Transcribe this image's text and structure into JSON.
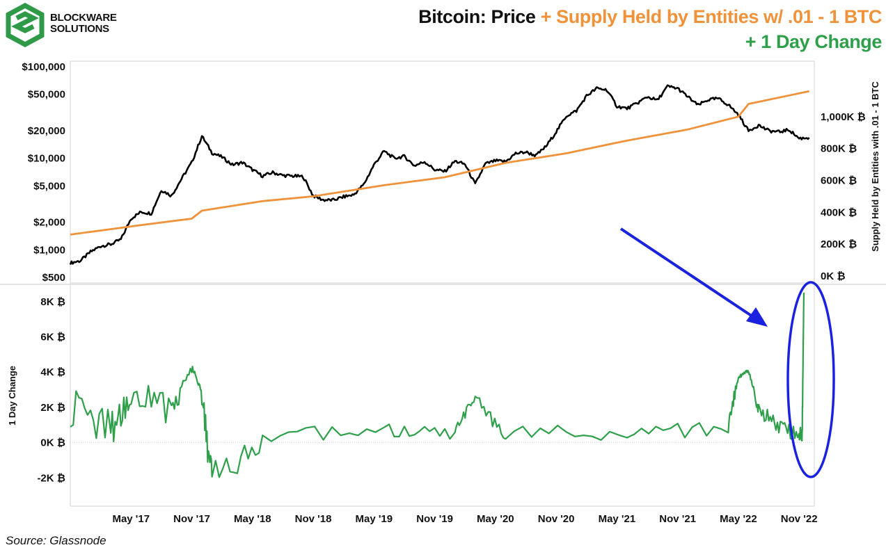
{
  "header": {
    "brand_line1": "BLOCKWARE",
    "brand_line2": "SOLUTIONS",
    "title_price": "Bitcoin: Price",
    "title_supply": "+ Supply Held by Entities w/ .01 - 1 BTC",
    "title_change": "+ 1 Day Change"
  },
  "footer": {
    "source": "Source: Glassnode"
  },
  "colors": {
    "price": "#000000",
    "supply": "#f0923a",
    "change": "#2ea04a",
    "arrow": "#1a22e0",
    "ellipse": "#1a22e0",
    "logo": "#2e9a48"
  },
  "chart_data": [
    {
      "type": "line",
      "panel": "top",
      "xlabel": "",
      "ylabel": "",
      "y2label": "Supply Held by Entities with .01 - 1 BTC",
      "yscale": "log",
      "ylim": [
        500,
        100000
      ],
      "y2lim": [
        0,
        1200000
      ],
      "y_ticks": [
        {
          "value": 100000,
          "label": "$100,000"
        },
        {
          "value": 50000,
          "label": "$50,000"
        },
        {
          "value": 20000,
          "label": "$20,000"
        },
        {
          "value": 10000,
          "label": "$10,000"
        },
        {
          "value": 5000,
          "label": "$5,000"
        },
        {
          "value": 2000,
          "label": "$2,000"
        },
        {
          "value": 1000,
          "label": "$1,000"
        },
        {
          "value": 500,
          "label": "$500"
        }
      ],
      "y2_ticks": [
        {
          "value": 1000000,
          "label": "1,000K ₿"
        },
        {
          "value": 800000,
          "label": "800K ₿"
        },
        {
          "value": 600000,
          "label": "600K ₿"
        },
        {
          "value": 400000,
          "label": "400K ₿"
        },
        {
          "value": 200000,
          "label": "200K ₿"
        },
        {
          "value": 0,
          "label": "0K ₿"
        }
      ],
      "series": [
        {
          "key": "price",
          "axis": "left",
          "x": [
            "2016-11",
            "2016-12",
            "2017-01",
            "2017-02",
            "2017-03",
            "2017-04",
            "2017-05",
            "2017-06",
            "2017-07",
            "2017-08",
            "2017-09",
            "2017-10",
            "2017-11",
            "2017-12",
            "2018-01",
            "2018-02",
            "2018-03",
            "2018-04",
            "2018-05",
            "2018-06",
            "2018-07",
            "2018-08",
            "2018-09",
            "2018-10",
            "2018-11",
            "2018-12",
            "2019-01",
            "2019-02",
            "2019-03",
            "2019-04",
            "2019-05",
            "2019-06",
            "2019-07",
            "2019-08",
            "2019-09",
            "2019-10",
            "2019-11",
            "2019-12",
            "2020-01",
            "2020-02",
            "2020-03",
            "2020-04",
            "2020-05",
            "2020-06",
            "2020-07",
            "2020-08",
            "2020-09",
            "2020-10",
            "2020-11",
            "2020-12",
            "2021-01",
            "2021-02",
            "2021-03",
            "2021-04",
            "2021-05",
            "2021-06",
            "2021-07",
            "2021-08",
            "2021-09",
            "2021-10",
            "2021-11",
            "2021-12",
            "2022-01",
            "2022-02",
            "2022-03",
            "2022-04",
            "2022-05",
            "2022-06",
            "2022-07",
            "2022-08",
            "2022-09",
            "2022-10",
            "2022-11",
            "2022-12"
          ],
          "values": [
            720,
            760,
            950,
            1100,
            1150,
            1300,
            2200,
            2600,
            2500,
            4500,
            3900,
            6000,
            9000,
            17500,
            11500,
            10300,
            8500,
            9000,
            7500,
            6400,
            7000,
            6500,
            6400,
            6300,
            3900,
            3500,
            3500,
            3800,
            4000,
            5200,
            8500,
            12000,
            10000,
            10500,
            8300,
            9200,
            7500,
            7200,
            9300,
            8600,
            5200,
            8700,
            9400,
            9200,
            11300,
            11700,
            10700,
            13500,
            19500,
            29000,
            33000,
            48000,
            58000,
            56000,
            37000,
            35000,
            40000,
            47000,
            43000,
            61000,
            58000,
            47000,
            38000,
            43500,
            45000,
            38500,
            30000,
            20000,
            23000,
            20000,
            19400,
            20500,
            16500,
            16800
          ]
        },
        {
          "key": "supply",
          "axis": "right",
          "x": [
            "2016-11",
            "2017-06",
            "2017-11",
            "2017-12",
            "2018-06",
            "2018-11",
            "2019-06",
            "2019-12",
            "2020-06",
            "2020-12",
            "2021-06",
            "2021-12",
            "2022-05",
            "2022-06",
            "2022-12"
          ],
          "values": [
            260000,
            320000,
            360000,
            410000,
            470000,
            500000,
            570000,
            620000,
            710000,
            770000,
            850000,
            920000,
            1000000,
            1080000,
            1160000
          ]
        }
      ]
    },
    {
      "type": "line",
      "panel": "bottom",
      "xlabel": "",
      "ylabel": "1 Day Change",
      "ylim": [
        -2500,
        8700
      ],
      "y_ticks": [
        {
          "value": 8000,
          "label": "8K ₿"
        },
        {
          "value": 6000,
          "label": "6K ₿"
        },
        {
          "value": 4000,
          "label": "4K ₿"
        },
        {
          "value": 2000,
          "label": "2K ₿"
        },
        {
          "value": 0,
          "label": "0K ₿"
        },
        {
          "value": -2000,
          "label": "-2K ₿"
        }
      ],
      "x_ticks": [
        "May '17",
        "Nov '17",
        "May '18",
        "Nov '18",
        "May '19",
        "Nov '19",
        "May '20",
        "Nov '20",
        "May '21",
        "Nov '21",
        "May '22",
        "Nov '22"
      ],
      "series": [
        {
          "key": "change",
          "x": [
            "2016-11",
            "2017-03",
            "2017-05",
            "2017-09",
            "2017-11",
            "2017-12",
            "2018-01",
            "2018-06",
            "2019-06",
            "2020-01",
            "2020-03",
            "2020-06",
            "2021-06",
            "2022-04",
            "2022-05",
            "2022-06",
            "2022-07",
            "2022-09",
            "2022-11",
            "2022-11-10",
            "2022-11-15"
          ],
          "values": [
            2000,
            800,
            2400,
            2200,
            4200,
            3000,
            -2300,
            400,
            600,
            500,
            2400,
            500,
            600,
            800,
            3700,
            4100,
            1900,
            900,
            500,
            500,
            8500
          ]
        }
      ],
      "annotations": [
        "arrow pointing to spike",
        "ellipse around Nov '22 spike"
      ]
    }
  ]
}
